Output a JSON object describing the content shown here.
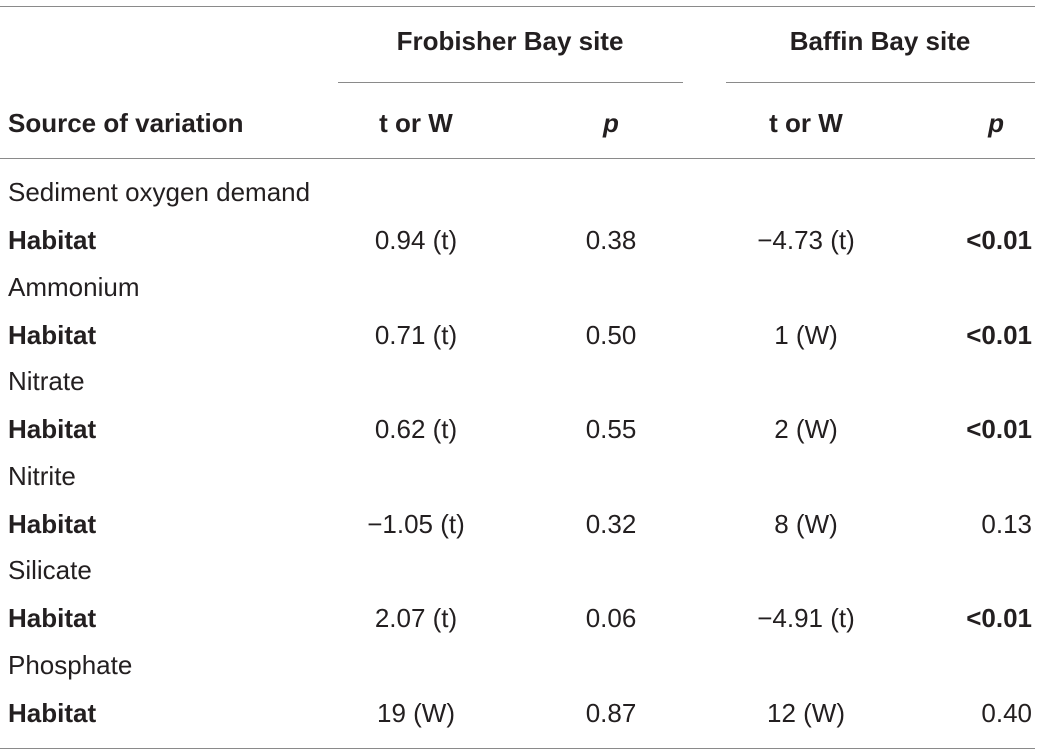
{
  "table": {
    "group_headers": {
      "frobisher": "Frobisher Bay site",
      "baffin": "Baffin Bay site"
    },
    "column_headers": {
      "source": "Source of variation",
      "frobisher_stat": "t or W",
      "frobisher_p": "p",
      "baffin_stat": "t or W",
      "baffin_p": "p"
    },
    "sections": [
      {
        "name": "Sediment oxygen demand",
        "row_label": "Habitat",
        "frobisher_stat": "0.94 (t)",
        "frobisher_p": "0.38",
        "baffin_stat": "−4.73 (t)",
        "baffin_p": "<0.01",
        "baffin_p_bold": true
      },
      {
        "name": "Ammonium",
        "row_label": "Habitat",
        "frobisher_stat": "0.71 (t)",
        "frobisher_p": "0.50",
        "baffin_stat": "1 (W)",
        "baffin_p": "<0.01",
        "baffin_p_bold": true
      },
      {
        "name": "Nitrate",
        "row_label": "Habitat",
        "frobisher_stat": "0.62 (t)",
        "frobisher_p": "0.55",
        "baffin_stat": "2 (W)",
        "baffin_p": "<0.01",
        "baffin_p_bold": true
      },
      {
        "name": "Nitrite",
        "row_label": "Habitat",
        "frobisher_stat": "−1.05 (t)",
        "frobisher_p": "0.32",
        "baffin_stat": "8 (W)",
        "baffin_p": "0.13",
        "baffin_p_bold": false
      },
      {
        "name": "Silicate",
        "row_label": "Habitat",
        "frobisher_stat": "2.07 (t)",
        "frobisher_p": "0.06",
        "baffin_stat": "−4.91 (t)",
        "baffin_p": "<0.01",
        "baffin_p_bold": true
      },
      {
        "name": "Phosphate",
        "row_label": "Habitat",
        "frobisher_stat": "19 (W)",
        "frobisher_p": "0.87",
        "baffin_stat": "12 (W)",
        "baffin_p": "0.40",
        "baffin_p_bold": false
      }
    ]
  }
}
